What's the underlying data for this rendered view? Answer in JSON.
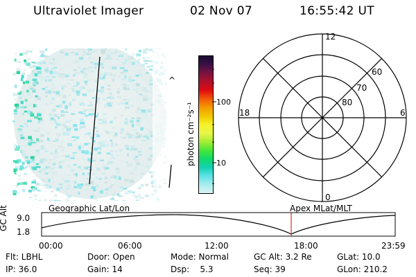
{
  "header": {
    "instrument": "Ultraviolet Imager",
    "date": "02 Nov 07",
    "time": "16:55:42 UT"
  },
  "colorbar": {
    "unit_label": "photon cm⁻²s⁻¹",
    "ticks": [
      "100",
      "10"
    ],
    "colors": [
      "#1a0a33",
      "#3a1245",
      "#7a1340",
      "#b0102a",
      "#e00b10",
      "#f25a08",
      "#f59a00",
      "#f2c800",
      "#f7f22a",
      "#e8f54a",
      "#a6ee33",
      "#46e63a",
      "#12d96a",
      "#14d1b4",
      "#5ee2e6",
      "#a8ecee",
      "#dbf2f2"
    ]
  },
  "polar": {
    "mlt_labels": {
      "top": "12",
      "left": "18",
      "right": "6",
      "bottom": "0"
    },
    "lat_labels": [
      "60",
      "70",
      "80"
    ]
  },
  "timeline": {
    "left_label": "Geographic Lat/Lon",
    "right_label": "Apex MLat/MLT",
    "axis_label": "GC Alt",
    "y_ticks": [
      "9.0",
      "1.8"
    ],
    "x_ticks": [
      "00:00",
      "06:00",
      "12:00",
      "18:00",
      "23:59"
    ],
    "marker_color": "#cc0000"
  },
  "info": {
    "row1": {
      "filter": "Flt: LBHL",
      "door": "Door: Open",
      "mode": "Mode: Normal",
      "gc_alt": "GC Alt: 3.2 Re",
      "glat": "GLat: 10.0"
    },
    "row2": {
      "ip": "IP: 36.0",
      "gain": "Gain: 14",
      "dsp": "Dsp:    5.3",
      "seq": "Seq: 39",
      "glon": "GLon: 210.2"
    }
  }
}
